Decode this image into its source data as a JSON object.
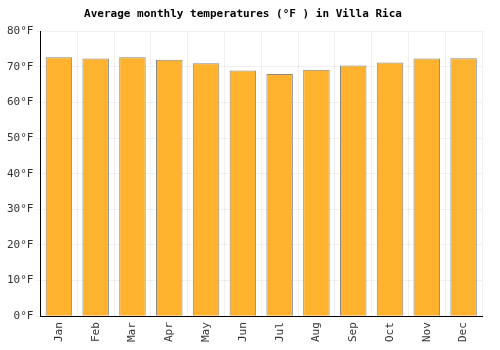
{
  "chart_data": {
    "type": "bar",
    "title": "Average monthly temperatures (°F ) in Villa Rica",
    "categories": [
      "Jan",
      "Feb",
      "Mar",
      "Apr",
      "May",
      "Jun",
      "Jul",
      "Aug",
      "Sep",
      "Oct",
      "Nov",
      "Dec"
    ],
    "values": [
      72.7,
      72.3,
      72.7,
      72.0,
      71.0,
      69.0,
      68.0,
      69.2,
      70.4,
      71.2,
      72.3,
      72.4
    ],
    "color": "#ffb22e",
    "ylim": [
      0,
      80
    ],
    "yticks": [
      {
        "value": 0,
        "label": "0°F"
      },
      {
        "value": 10,
        "label": "10°F"
      },
      {
        "value": 20,
        "label": "20°F"
      },
      {
        "value": 30,
        "label": "30°F"
      },
      {
        "value": 40,
        "label": "40°F"
      },
      {
        "value": 50,
        "label": "50°F"
      },
      {
        "value": 60,
        "label": "60°F"
      },
      {
        "value": 70,
        "label": "70°F"
      },
      {
        "value": 80,
        "label": "80°F"
      }
    ],
    "grid": true
  }
}
